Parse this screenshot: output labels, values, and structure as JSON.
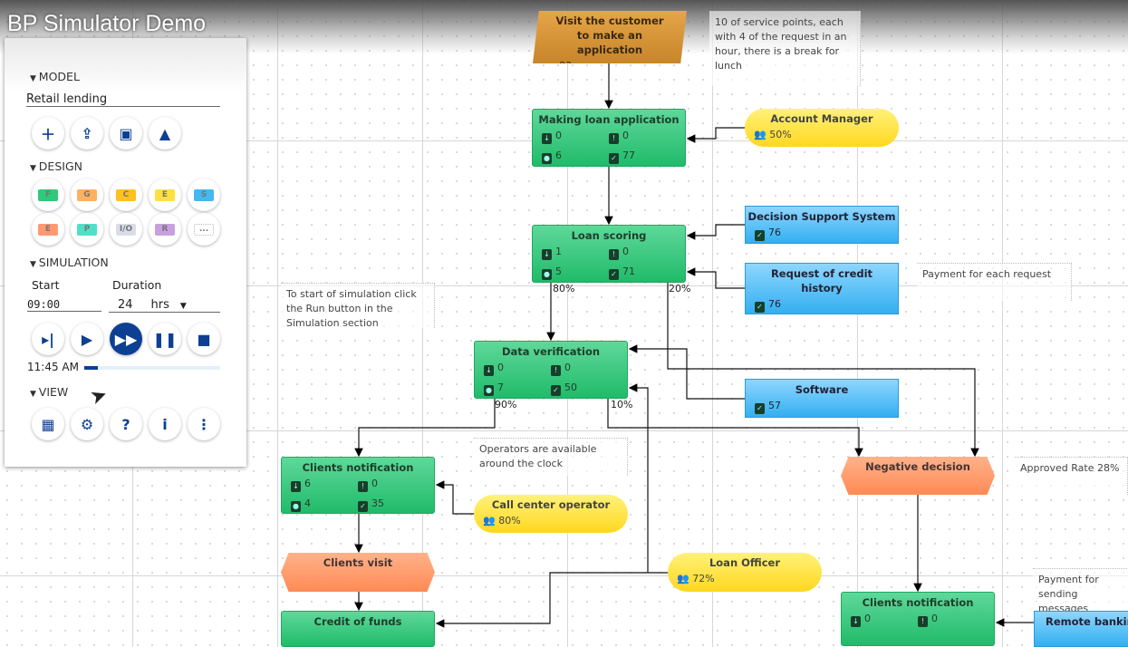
{
  "app": {
    "title": "BP Simulator Demo"
  },
  "panel": {
    "model_label": "MODEL",
    "model_name": "Retail lending",
    "model_buttons": [
      {
        "icon": "add-icon"
      },
      {
        "icon": "open-icon"
      },
      {
        "icon": "save-icon"
      },
      {
        "icon": "image-icon"
      }
    ],
    "design_label": "DESIGN",
    "design_shapes": [
      {
        "label": "F",
        "color": "#2ec97a"
      },
      {
        "label": "G",
        "color": "#ffb060"
      },
      {
        "label": "C",
        "color": "#ffc020"
      },
      {
        "label": "E",
        "color": "#ffe040"
      },
      {
        "label": "S",
        "color": "#44b8f0"
      },
      {
        "label": "E",
        "color": "#ff9a70"
      },
      {
        "label": "P",
        "color": "#50e0c8"
      },
      {
        "label": "I/O",
        "color": "#d8dde8"
      },
      {
        "label": "R",
        "color": "#c8a0e0"
      },
      {
        "label": "...",
        "color": "#ffffff"
      }
    ],
    "simulation_label": "SIMULATION",
    "start_label": "Start",
    "start_value": "09:00",
    "duration_label": "Duration",
    "duration_value": "24",
    "duration_unit": "hrs",
    "time": "11:45 AM",
    "progress": 0.1,
    "view_label": "VIEW"
  },
  "nodes": {
    "visit": {
      "title": "Visit the customer to make an application",
      "value": "83"
    },
    "making": {
      "title": "Making loan application",
      "s": [
        "0",
        "0",
        "6",
        "77"
      ]
    },
    "account_manager": {
      "title": "Account Manager",
      "value": "50%"
    },
    "scoring": {
      "title": "Loan scoring",
      "s": [
        "1",
        "0",
        "5",
        "71"
      ]
    },
    "dss": {
      "title": "Decision Support System",
      "value": "76"
    },
    "credit_history": {
      "title": "Request of credit history",
      "value": "76"
    },
    "verification": {
      "title": "Data verification",
      "s": [
        "0",
        "0",
        "7",
        "50"
      ]
    },
    "software": {
      "title": "Software",
      "value": "57"
    },
    "clients_notification": {
      "title": "Clients notification",
      "s": [
        "6",
        "0",
        "4",
        "35"
      ]
    },
    "call_center": {
      "title": "Call center operator",
      "value": "80%"
    },
    "negative": {
      "title": "Negative decision"
    },
    "clients_visit": {
      "title": "Clients visit"
    },
    "loan_officer": {
      "title": "Loan Officer",
      "value": "72%"
    },
    "credit_funds": {
      "title": "Credit of funds"
    },
    "clients_notification2": {
      "title": "Clients notification",
      "s": [
        "0",
        "0"
      ]
    },
    "remote": {
      "title": "Remote banking"
    }
  },
  "notes": {
    "service": "10 of service points, each with 4 of the request in an hour, there is a break for lunch",
    "payment": "Payment for each request",
    "start_sim": "To start of simulation click the Run button in the Simulation section",
    "operators": "Operators are available around the clock",
    "approved": "Approved Rate 28%",
    "sending": "Payment for sending messages"
  },
  "percents": {
    "p80": "80%",
    "p20": "20%",
    "p90": "90%",
    "p10": "10%"
  }
}
